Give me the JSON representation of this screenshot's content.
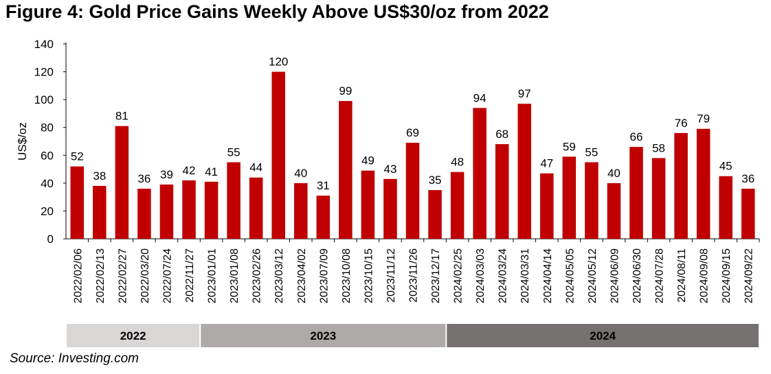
{
  "title": "Figure 4: Gold Price Gains Weekly Above US$30/oz from 2022",
  "source": "Source: Investing.com",
  "colors": {
    "bar": "#c00000",
    "year_2022": "#d9d6d6",
    "year_2023": "#aeaaaa",
    "year_2024": "#767171"
  },
  "chart_data": {
    "type": "bar",
    "ylabel": "US$/oz",
    "xlabel": "",
    "ylim": [
      0,
      140
    ],
    "yticks": [
      0,
      20,
      40,
      60,
      80,
      100,
      120,
      140
    ],
    "grid": false,
    "categories": [
      "2022/02/06",
      "2022/02/13",
      "2022/02/27",
      "2022/03/20",
      "2022/07/24",
      "2022/11/27",
      "2023/01/01",
      "2023/01/08",
      "2023/02/26",
      "2023/03/12",
      "2023/04/02",
      "2023/07/09",
      "2023/10/08",
      "2023/10/15",
      "2023/11/12",
      "2023/11/26",
      "2023/12/17",
      "2024/02/25",
      "2024/03/03",
      "2024/03/24",
      "2024/03/31",
      "2024/04/14",
      "2024/05/05",
      "2024/05/12",
      "2024/06/09",
      "2024/06/30",
      "2024/07/28",
      "2024/08/11",
      "2024/09/08",
      "2024/09/15",
      "2024/09/22"
    ],
    "values": [
      52,
      38,
      81,
      36,
      39,
      42,
      41,
      55,
      44,
      120,
      40,
      31,
      99,
      49,
      43,
      69,
      35,
      48,
      94,
      68,
      97,
      47,
      59,
      55,
      40,
      66,
      58,
      76,
      79,
      45,
      36
    ],
    "year_groups": [
      {
        "label": "2022",
        "start": 0,
        "end": 5
      },
      {
        "label": "2023",
        "start": 6,
        "end": 16
      },
      {
        "label": "2024",
        "start": 17,
        "end": 30
      }
    ]
  }
}
